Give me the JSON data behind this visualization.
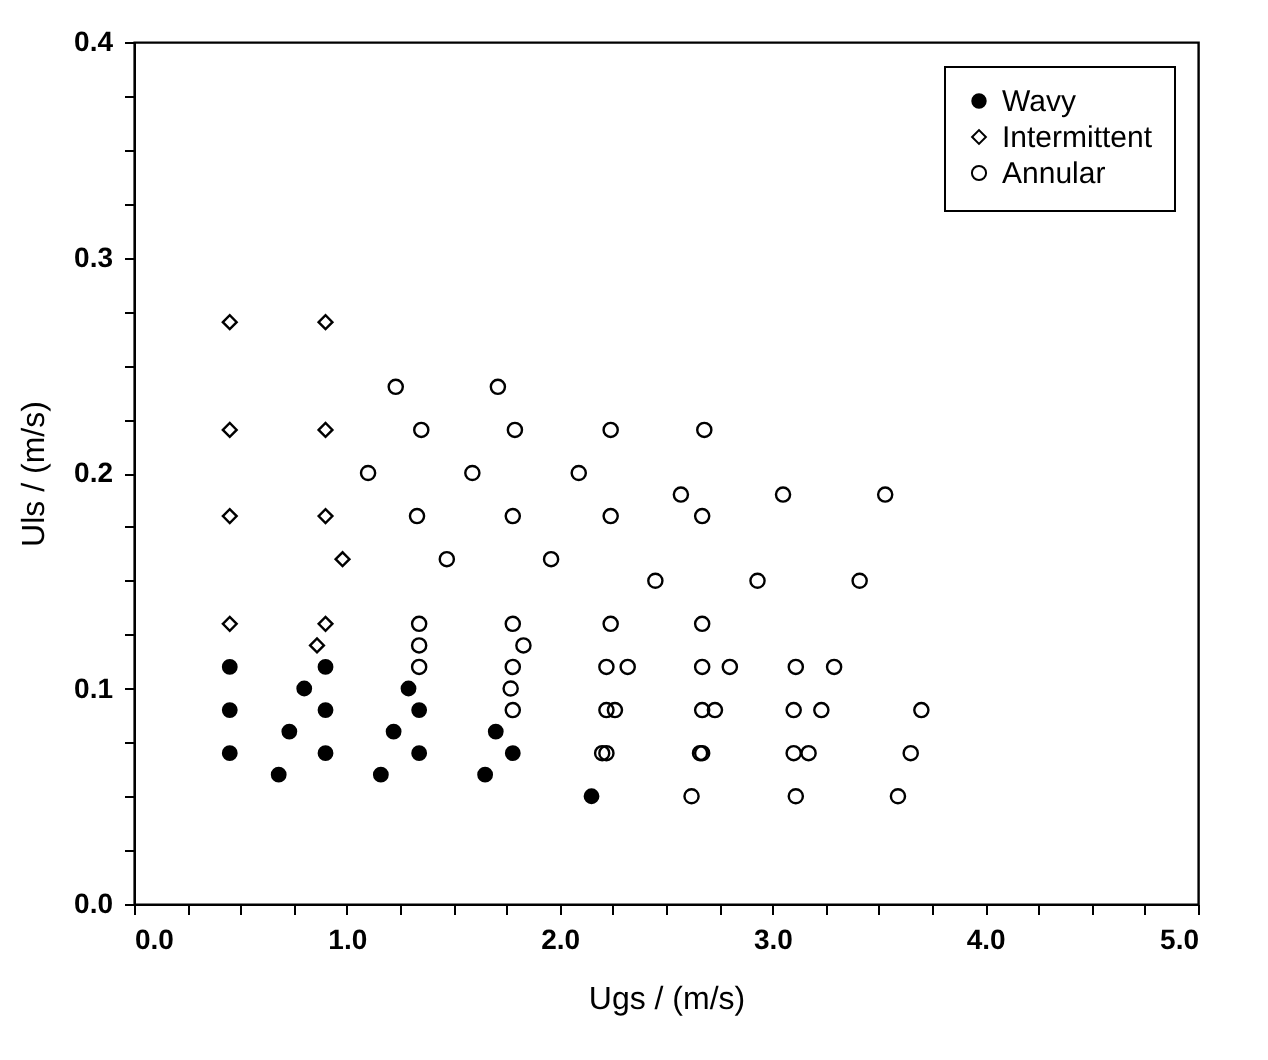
{
  "chart_data": {
    "type": "scatter",
    "xlabel": "Ugs / (m/s)",
    "ylabel": "Uls / (m/s)",
    "xlim": [
      0,
      5
    ],
    "ylim": [
      0,
      0.4
    ],
    "xticks": [
      {
        "value": 0,
        "label": "0.0"
      },
      {
        "value": 0.25,
        "label": null
      },
      {
        "value": 0.5,
        "label": null
      },
      {
        "value": 0.75,
        "label": null
      },
      {
        "value": 1,
        "label": "1.0"
      },
      {
        "value": 1.25,
        "label": null
      },
      {
        "value": 1.5,
        "label": null
      },
      {
        "value": 1.75,
        "label": null
      },
      {
        "value": 2,
        "label": "2.0"
      },
      {
        "value": 2.25,
        "label": null
      },
      {
        "value": 2.5,
        "label": null
      },
      {
        "value": 2.75,
        "label": null
      },
      {
        "value": 3,
        "label": "3.0"
      },
      {
        "value": 3.25,
        "label": null
      },
      {
        "value": 3.5,
        "label": null
      },
      {
        "value": 3.75,
        "label": null
      },
      {
        "value": 4,
        "label": "4.0"
      },
      {
        "value": 4.25,
        "label": null
      },
      {
        "value": 4.5,
        "label": null
      },
      {
        "value": 4.75,
        "label": null
      },
      {
        "value": 5,
        "label": "5.0"
      }
    ],
    "yticks": [
      {
        "value": 0,
        "label": "0.0"
      },
      {
        "value": 0.025,
        "label": null
      },
      {
        "value": 0.05,
        "label": null
      },
      {
        "value": 0.075,
        "label": null
      },
      {
        "value": 0.1,
        "label": "0.1"
      },
      {
        "value": 0.125,
        "label": null
      },
      {
        "value": 0.15,
        "label": null
      },
      {
        "value": 0.175,
        "label": null
      },
      {
        "value": 0.2,
        "label": "0.2"
      },
      {
        "value": 0.225,
        "label": null
      },
      {
        "value": 0.25,
        "label": null
      },
      {
        "value": 0.275,
        "label": null
      },
      {
        "value": 0.3,
        "label": "0.3"
      },
      {
        "value": 0.325,
        "label": null
      },
      {
        "value": 0.35,
        "label": null
      },
      {
        "value": 0.375,
        "label": null
      },
      {
        "value": 0.4,
        "label": "0.4"
      }
    ],
    "grid": false,
    "legend": "top right",
    "series": [
      {
        "name": "Wavy",
        "color": "#000000",
        "marker": "circle",
        "x": [
          0.45,
          0.45,
          0.45,
          0.68,
          0.73,
          0.8,
          0.9,
          0.9,
          0.9,
          1.16,
          1.22,
          1.29,
          1.34,
          1.34,
          1.65,
          1.7,
          1.78,
          2.15
        ],
        "values": [
          0.11,
          0.09,
          0.07,
          0.06,
          0.08,
          0.1,
          0.11,
          0.09,
          0.07,
          0.06,
          0.08,
          0.1,
          0.09,
          0.07,
          0.06,
          0.08,
          0.07,
          0.05
        ]
      },
      {
        "name": "Intermittent",
        "color": "#000000",
        "marker": "diamond",
        "x": [
          0.45,
          0.45,
          0.45,
          0.45,
          0.9,
          0.9,
          0.9,
          0.9,
          0.86,
          0.98
        ],
        "values": [
          0.27,
          0.22,
          0.18,
          0.13,
          0.27,
          0.22,
          0.18,
          0.13,
          0.12,
          0.16
        ]
      },
      {
        "name": "Annular",
        "color": "#000000",
        "marker": "circle",
        "x": [
          1.23,
          1.35,
          1.1,
          1.33,
          1.47,
          1.34,
          1.34,
          1.34,
          1.71,
          1.79,
          1.59,
          1.78,
          1.78,
          1.83,
          1.78,
          1.77,
          1.78,
          1.96,
          2.09,
          2.24,
          2.24,
          2.24,
          2.22,
          2.32,
          2.22,
          2.26,
          2.2,
          2.22,
          2.45,
          2.57,
          2.68,
          2.67,
          2.67,
          2.67,
          2.8,
          2.67,
          2.73,
          2.66,
          2.67,
          2.62,
          2.93,
          3.05,
          3.11,
          3.29,
          3.1,
          3.23,
          3.1,
          3.17,
          3.11,
          3.41,
          3.53,
          3.7,
          3.65,
          3.59
        ],
        "values": [
          0.24,
          0.22,
          0.2,
          0.18,
          0.16,
          0.13,
          0.12,
          0.11,
          0.24,
          0.22,
          0.2,
          0.18,
          0.13,
          0.12,
          0.11,
          0.1,
          0.09,
          0.16,
          0.2,
          0.22,
          0.18,
          0.13,
          0.11,
          0.11,
          0.09,
          0.09,
          0.07,
          0.07,
          0.15,
          0.19,
          0.22,
          0.18,
          0.13,
          0.11,
          0.11,
          0.09,
          0.09,
          0.07,
          0.07,
          0.05,
          0.15,
          0.19,
          0.11,
          0.11,
          0.09,
          0.09,
          0.07,
          0.07,
          0.05,
          0.15,
          0.19,
          0.09,
          0.07,
          0.05
        ]
      }
    ]
  }
}
